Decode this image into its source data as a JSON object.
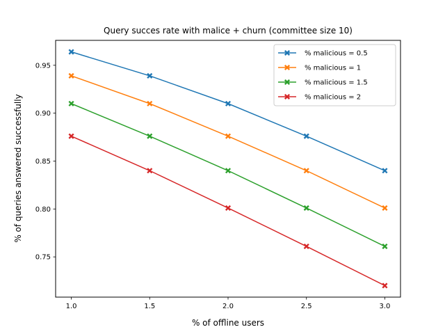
{
  "chart_data": {
    "type": "line",
    "title": "Query succes rate with malice + churn (committee size 10)",
    "xlabel": "% of offline users",
    "ylabel": "% of queries answered successfully",
    "x": [
      1.0,
      1.5,
      2.0,
      2.5,
      3.0
    ],
    "x_ticks": [
      "1.0",
      "1.5",
      "2.0",
      "2.5",
      "3.0"
    ],
    "y_ticks": [
      "0.75",
      "0.80",
      "0.85",
      "0.90",
      "0.95"
    ],
    "xlim": [
      0.9,
      3.1
    ],
    "ylim": [
      0.708,
      0.976
    ],
    "grid": false,
    "legend_position": "top-right",
    "marker": "x",
    "series": [
      {
        "name": "% malicious = 0.5",
        "color": "#1f77b4",
        "values": [
          0.964,
          0.939,
          0.91,
          0.876,
          0.84
        ]
      },
      {
        "name": "% malicious = 1",
        "color": "#ff7f0e",
        "values": [
          0.939,
          0.91,
          0.876,
          0.84,
          0.801
        ]
      },
      {
        "name": "% malicious = 1.5",
        "color": "#2ca02c",
        "values": [
          0.91,
          0.876,
          0.84,
          0.801,
          0.761
        ]
      },
      {
        "name": "% malicious = 2",
        "color": "#d62728",
        "values": [
          0.876,
          0.84,
          0.801,
          0.761,
          0.72
        ]
      }
    ]
  }
}
